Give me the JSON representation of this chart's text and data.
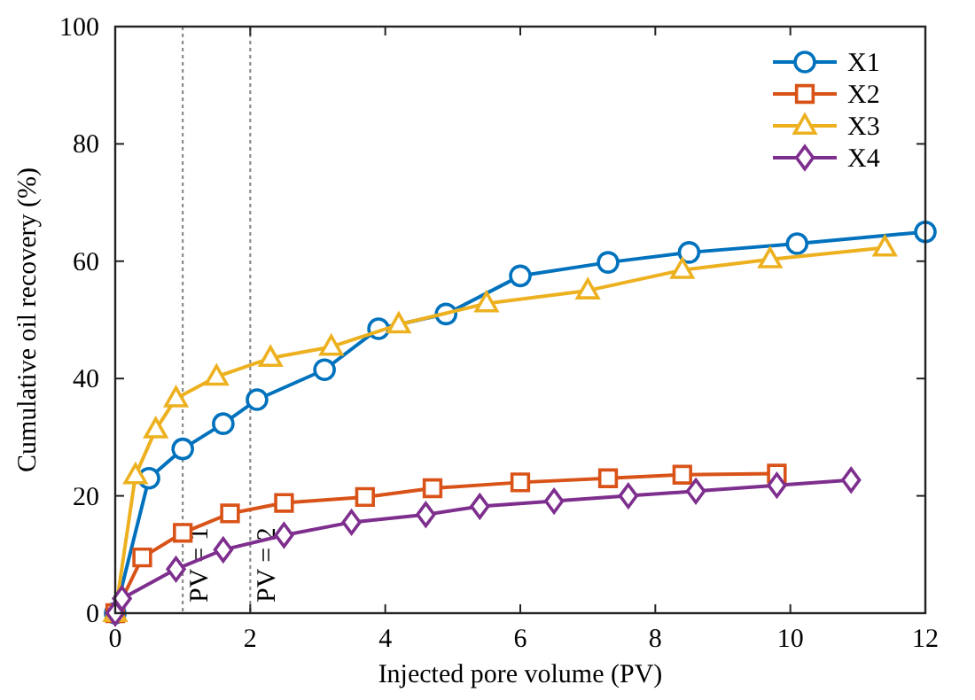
{
  "chart_data": {
    "type": "line",
    "xlabel": "Injected pore volume (PV)",
    "ylabel": "Cumulative oil recovery (%)",
    "xlim": [
      0,
      12
    ],
    "ylim": [
      0,
      100
    ],
    "xticks": [
      0,
      2,
      4,
      6,
      8,
      10,
      12
    ],
    "yticks": [
      0,
      20,
      40,
      60,
      80,
      100
    ],
    "grid": false,
    "legend": "top right",
    "line_style": "solid",
    "ref_lines": [
      {
        "axis": "x",
        "value": 1,
        "label": "PV = 1",
        "color": "#808080",
        "line_style": "dotted"
      },
      {
        "axis": "x",
        "value": 2,
        "label": "PV = 2",
        "color": "#808080",
        "line_style": "dotted"
      }
    ],
    "series": [
      {
        "name": "X1",
        "color": "#0072bd",
        "marker": "circle",
        "x": [
          0,
          0.5,
          1,
          1.6,
          2.1,
          3.1,
          3.9,
          4.9,
          6,
          7.3,
          8.5,
          10.1,
          12
        ],
        "values": [
          0,
          23,
          28,
          32.3,
          36.4,
          41.5,
          48.5,
          51,
          57.5,
          59.8,
          61.5,
          63,
          65
        ]
      },
      {
        "name": "X2",
        "color": "#d95319",
        "marker": "square",
        "x": [
          0,
          0.4,
          1,
          1.7,
          2.5,
          3.7,
          4.7,
          6,
          7.3,
          8.4,
          9.8
        ],
        "values": [
          0,
          9.5,
          13.7,
          17,
          18.8,
          19.8,
          21.3,
          22.3,
          23,
          23.6,
          23.8
        ]
      },
      {
        "name": "X3",
        "color": "#edb120",
        "marker": "triangle",
        "x": [
          0,
          0.3,
          0.6,
          0.9,
          1.5,
          2.3,
          3.2,
          4.2,
          5.5,
          7,
          8.4,
          9.7,
          11.4
        ],
        "values": [
          0,
          23.5,
          31.3,
          36.6,
          40.3,
          43.5,
          45.4,
          49.2,
          52.8,
          55,
          58.5,
          60.3,
          62.3
        ]
      },
      {
        "name": "X4",
        "color": "#7e2f8e",
        "marker": "diamond",
        "x": [
          0,
          0.1,
          0.9,
          1.6,
          2.5,
          3.5,
          4.6,
          5.4,
          6.5,
          7.6,
          8.6,
          9.8,
          10.9
        ],
        "values": [
          0,
          2.5,
          7.5,
          10.8,
          13.3,
          15.5,
          16.8,
          18.2,
          19.1,
          20,
          20.8,
          21.8,
          22.7
        ]
      }
    ]
  }
}
